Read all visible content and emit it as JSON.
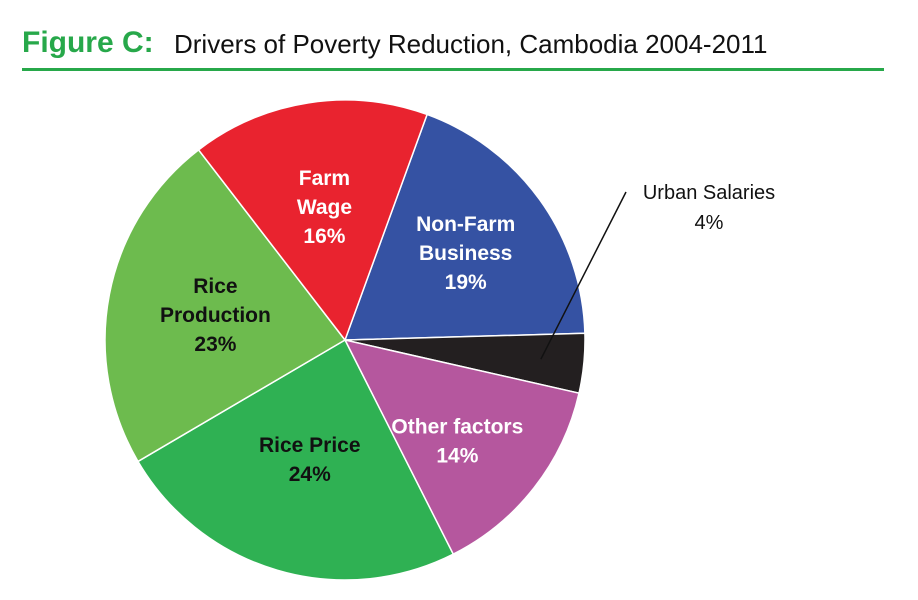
{
  "header": {
    "figure_label": "Figure C:",
    "title": "Drivers of Poverty Reduction, Cambodia 2004-2011"
  },
  "colors": {
    "accent": "#27a84a",
    "text": "#111111"
  },
  "chart_data": {
    "type": "pie",
    "title": "Drivers of Poverty Reduction, Cambodia 2004-2011",
    "slices": [
      {
        "label": "Non-Farm Business",
        "lines": [
          "Non-Farm",
          "Business",
          "19%"
        ],
        "value": 19,
        "color": "#3552a3",
        "text_color": "#ffffff"
      },
      {
        "label": "Urban Salaries",
        "lines": [
          "Urban Salaries",
          "4%"
        ],
        "value": 4,
        "color": "#231f20",
        "text_color": "#111111",
        "callout": true
      },
      {
        "label": "Other factors",
        "lines": [
          "Other factors",
          "14%"
        ],
        "value": 14,
        "color": "#b5579e",
        "text_color": "#ffffff"
      },
      {
        "label": "Rice Price",
        "lines": [
          "Rice Price",
          "24%"
        ],
        "value": 24,
        "color": "#2fb153",
        "text_color": "#111111"
      },
      {
        "label": "Rice Production",
        "lines": [
          "Rice",
          "Production",
          "23%"
        ],
        "value": 23,
        "color": "#6dbb4e",
        "text_color": "#111111"
      },
      {
        "label": "Farm Wage",
        "lines": [
          "Farm",
          "Wage",
          "16%"
        ],
        "value": 16,
        "color": "#e9232f",
        "text_color": "#ffffff"
      }
    ]
  }
}
